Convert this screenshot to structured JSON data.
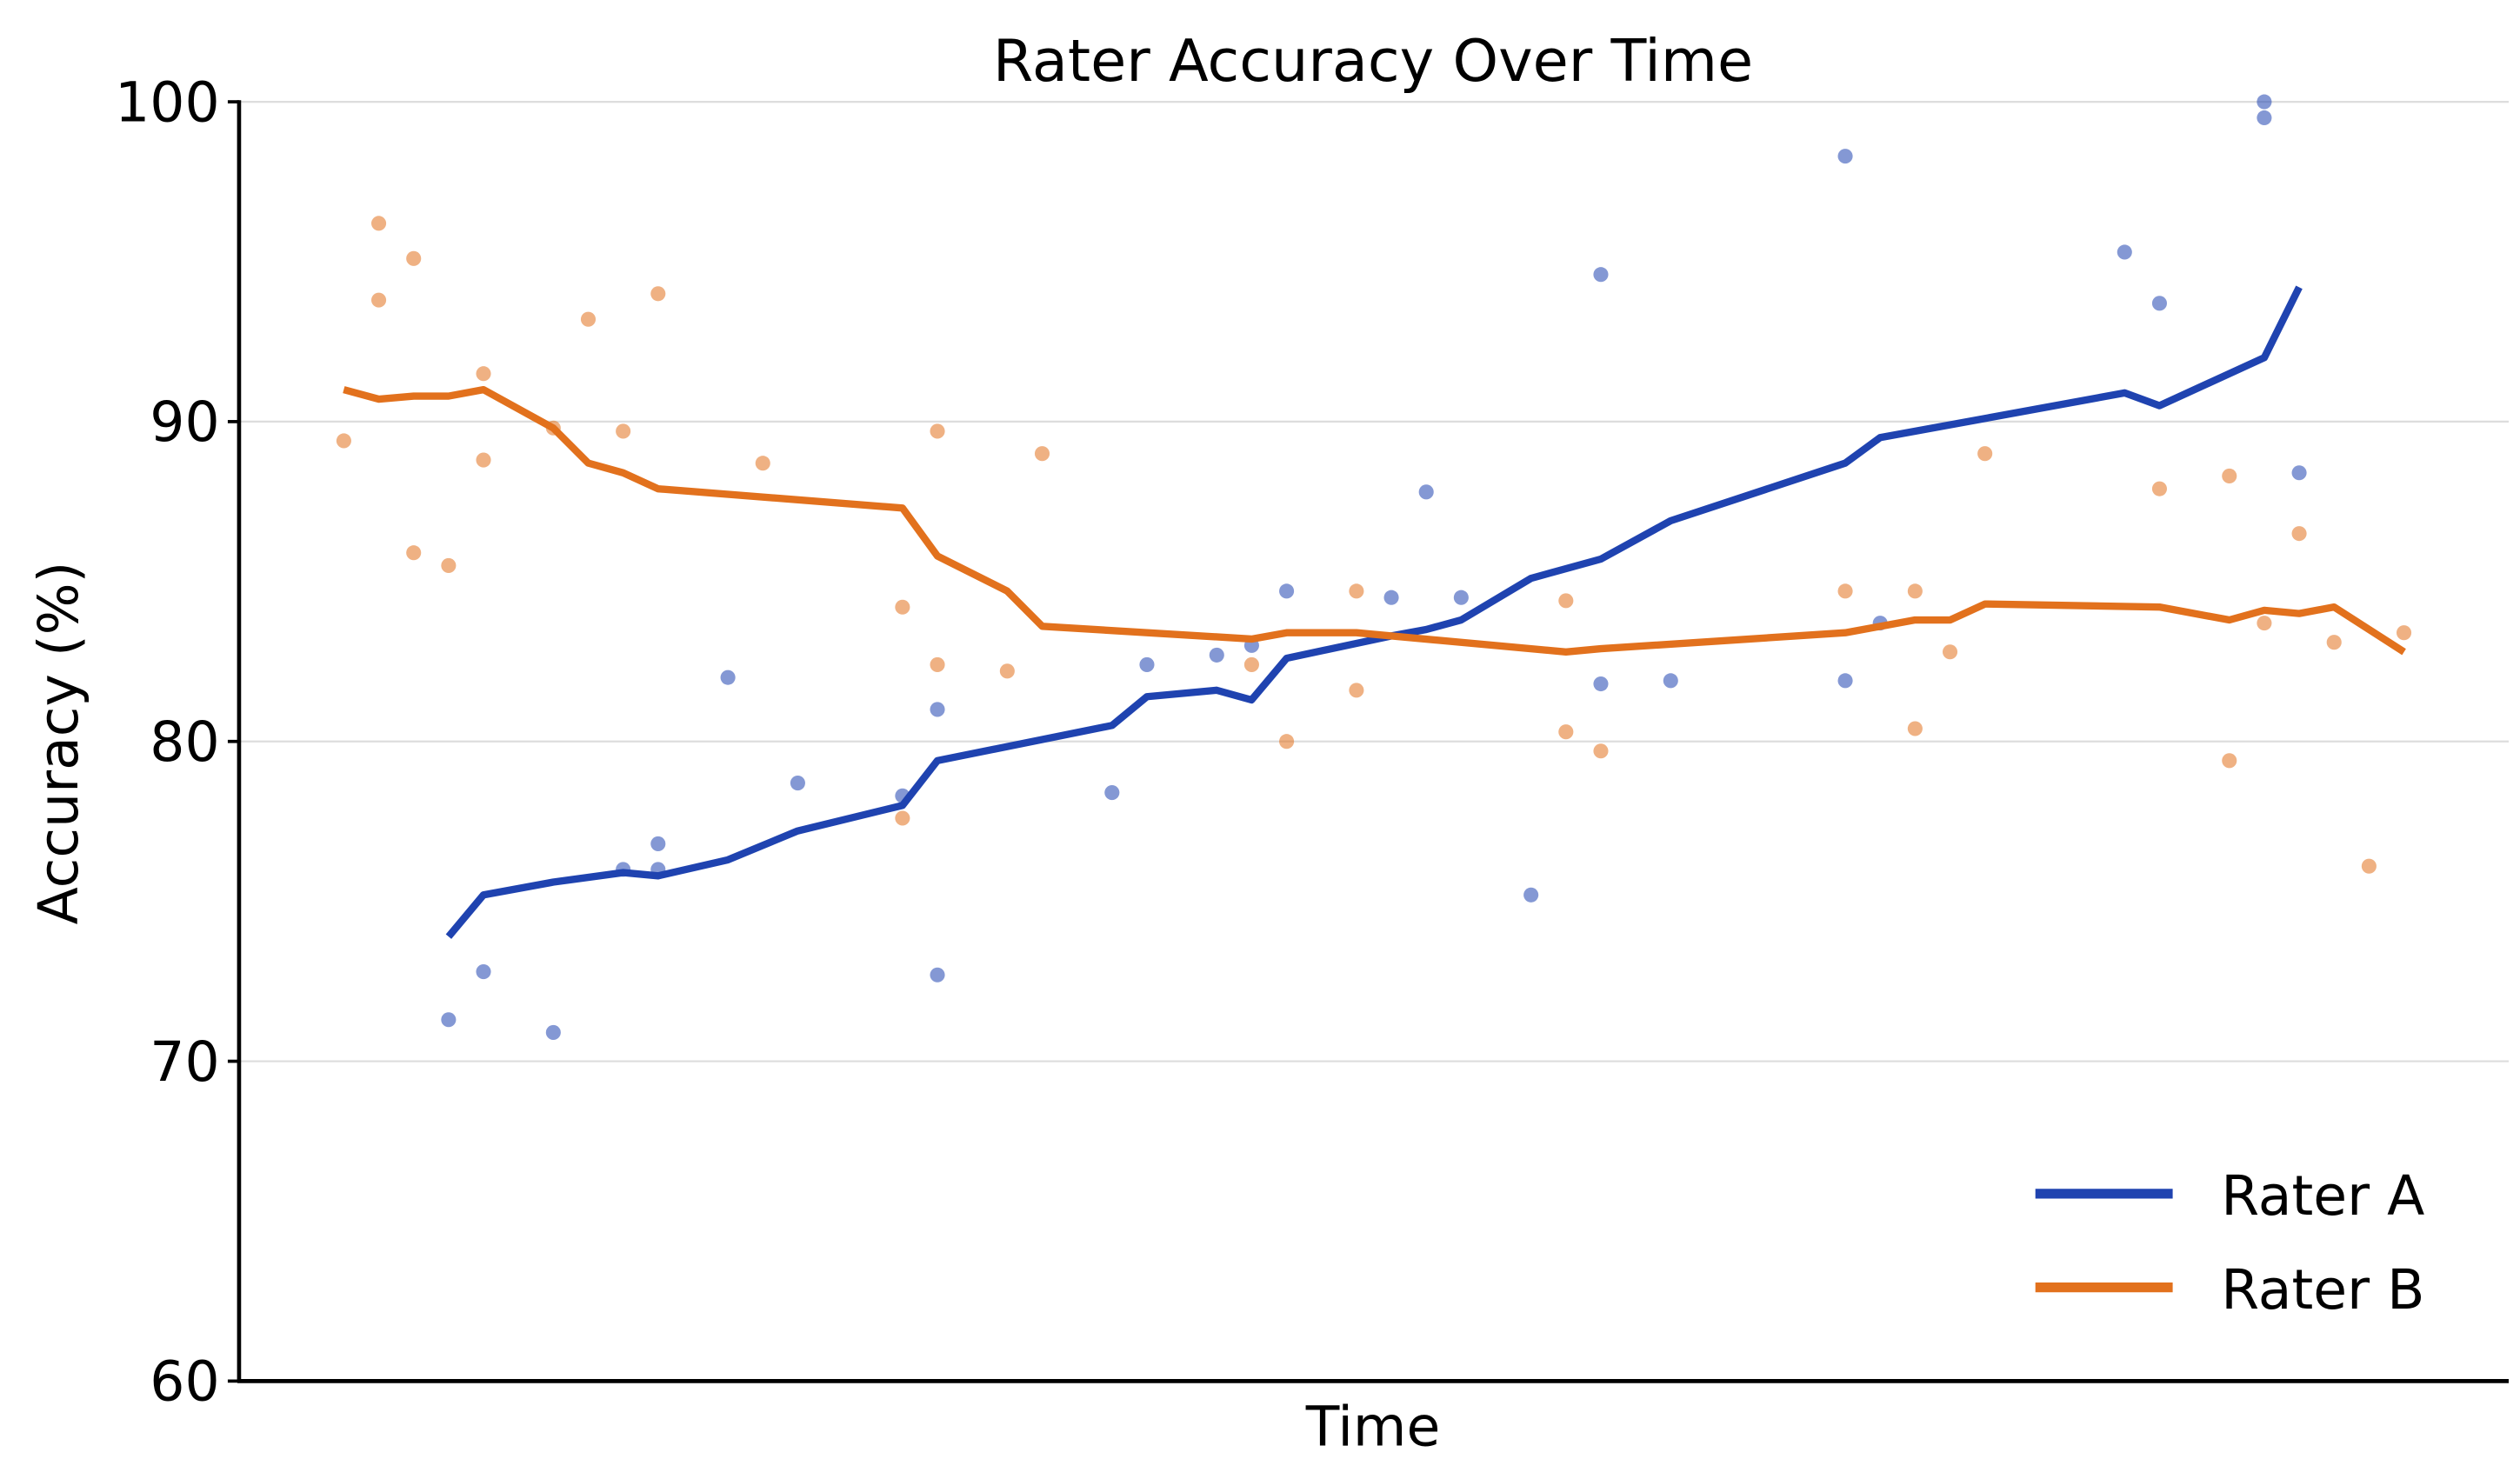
{
  "chart_data": {
    "type": "line",
    "title": "Rater Accuracy Over Time",
    "xlabel": "Time",
    "ylabel": "Accuracy (%)",
    "ylim": [
      60,
      100
    ],
    "xlim": [
      -3,
      62
    ],
    "yticks": [
      60,
      70,
      80,
      90,
      100
    ],
    "grid": "horizontal",
    "legend_position": "bottom-right",
    "series": [
      {
        "name": "Rater A",
        "color": "#1f43b0",
        "points": [
          [
            3,
            71.3
          ],
          [
            4,
            72.8
          ],
          [
            6,
            70.9
          ],
          [
            8,
            76.0
          ],
          [
            9,
            76.8
          ],
          [
            9,
            76.0
          ],
          [
            11,
            82.0
          ],
          [
            13,
            78.7
          ],
          [
            16,
            78.3
          ],
          [
            17,
            81.0
          ],
          [
            17,
            72.7
          ],
          [
            22,
            78.4
          ],
          [
            23,
            82.4
          ],
          [
            25,
            82.7
          ],
          [
            26,
            83.0
          ],
          [
            27,
            84.7
          ],
          [
            30,
            84.5
          ],
          [
            31,
            87.8
          ],
          [
            32,
            84.5
          ],
          [
            34,
            75.2
          ],
          [
            36,
            94.6
          ],
          [
            36,
            81.8
          ],
          [
            38,
            81.9
          ],
          [
            43,
            98.3
          ],
          [
            43,
            81.9
          ],
          [
            44,
            83.7
          ],
          [
            51,
            95.3
          ],
          [
            52,
            93.7
          ],
          [
            55,
            100.0
          ],
          [
            55,
            99.5
          ],
          [
            56,
            88.4
          ]
        ],
        "trend": [
          [
            3,
            73.9
          ],
          [
            4,
            75.2
          ],
          [
            6,
            75.6
          ],
          [
            8,
            75.9
          ],
          [
            9,
            75.8
          ],
          [
            11,
            76.3
          ],
          [
            13,
            77.2
          ],
          [
            16,
            78.0
          ],
          [
            17,
            79.4
          ],
          [
            22,
            80.5
          ],
          [
            23,
            81.4
          ],
          [
            25,
            81.6
          ],
          [
            26,
            81.3
          ],
          [
            27,
            82.6
          ],
          [
            30,
            83.3
          ],
          [
            31,
            83.5
          ],
          [
            32,
            83.8
          ],
          [
            34,
            85.1
          ],
          [
            36,
            85.7
          ],
          [
            38,
            86.9
          ],
          [
            43,
            88.7
          ],
          [
            44,
            89.5
          ],
          [
            51,
            90.9
          ],
          [
            52,
            90.5
          ],
          [
            55,
            92.0
          ],
          [
            56,
            94.2
          ]
        ]
      },
      {
        "name": "Rater B",
        "color": "#e2711d",
        "points": [
          [
            0,
            89.4
          ],
          [
            1,
            96.2
          ],
          [
            1,
            93.8
          ],
          [
            2,
            95.1
          ],
          [
            2,
            85.9
          ],
          [
            3,
            85.5
          ],
          [
            4,
            91.5
          ],
          [
            4,
            88.8
          ],
          [
            6,
            89.8
          ],
          [
            7,
            93.2
          ],
          [
            8,
            89.7
          ],
          [
            9,
            94.0
          ],
          [
            12,
            88.7
          ],
          [
            16,
            84.2
          ],
          [
            16,
            77.6
          ],
          [
            17,
            89.7
          ],
          [
            17,
            82.4
          ],
          [
            19,
            82.2
          ],
          [
            20,
            89.0
          ],
          [
            26,
            82.4
          ],
          [
            27,
            80.0
          ],
          [
            29,
            84.7
          ],
          [
            29,
            81.6
          ],
          [
            35,
            84.4
          ],
          [
            35,
            80.3
          ],
          [
            36,
            79.7
          ],
          [
            43,
            84.7
          ],
          [
            45,
            84.7
          ],
          [
            45,
            80.4
          ],
          [
            46,
            82.8
          ],
          [
            47,
            89.0
          ],
          [
            52,
            87.9
          ],
          [
            54,
            88.3
          ],
          [
            54,
            79.4
          ],
          [
            55,
            83.7
          ],
          [
            56,
            86.5
          ],
          [
            57,
            83.1
          ],
          [
            58,
            76.1
          ],
          [
            59,
            83.4
          ]
        ],
        "trend": [
          [
            0,
            91.0
          ],
          [
            1,
            90.7
          ],
          [
            2,
            90.8
          ],
          [
            3,
            90.8
          ],
          [
            4,
            91.0
          ],
          [
            6,
            89.8
          ],
          [
            7,
            88.7
          ],
          [
            8,
            88.4
          ],
          [
            9,
            87.9
          ],
          [
            16,
            87.3
          ],
          [
            17,
            85.8
          ],
          [
            19,
            84.7
          ],
          [
            20,
            83.6
          ],
          [
            26,
            83.2
          ],
          [
            27,
            83.4
          ],
          [
            29,
            83.4
          ],
          [
            35,
            82.8
          ],
          [
            36,
            82.9
          ],
          [
            43,
            83.4
          ],
          [
            45,
            83.8
          ],
          [
            46,
            83.8
          ],
          [
            47,
            84.3
          ],
          [
            52,
            84.2
          ],
          [
            54,
            83.8
          ],
          [
            55,
            84.1
          ],
          [
            56,
            84.0
          ],
          [
            57,
            84.2
          ],
          [
            59,
            82.8
          ]
        ]
      }
    ]
  }
}
